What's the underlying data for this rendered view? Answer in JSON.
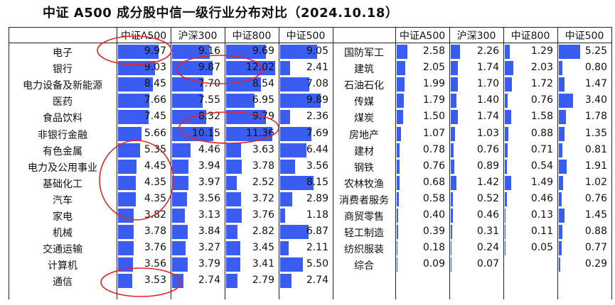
{
  "title": "中证 A500 成分股中信一级行业分布对比（2024.10.18）",
  "chart_data": {
    "type": "table",
    "columns": [
      "中证A500",
      "沪深300",
      "中证800",
      "中证500"
    ],
    "highlight_color": "#e0262b",
    "bar_color": "#3b5cf0",
    "left": [
      {
        "industry": "电子",
        "values": [
          "9.97",
          "9.16",
          "9.69",
          "9.05"
        ]
      },
      {
        "industry": "银行",
        "values": [
          "9.03",
          "9.87",
          "12.02",
          "2.41"
        ]
      },
      {
        "industry": "电力设备及新能源",
        "values": [
          "8.45",
          "7.70",
          "8.54",
          "7.08"
        ]
      },
      {
        "industry": "医药",
        "values": [
          "7.66",
          "7.55",
          "6.95",
          "9.89"
        ]
      },
      {
        "industry": "食品饮料",
        "values": [
          "7.45",
          "8.32",
          "9.79",
          "2.36"
        ]
      },
      {
        "industry": "非银行金融",
        "values": [
          "5.66",
          "10.15",
          "11.36",
          "7.69"
        ]
      },
      {
        "industry": "有色金属",
        "values": [
          "5.35",
          "4.46",
          "3.63",
          "6.44"
        ]
      },
      {
        "industry": "电力及公用事业",
        "values": [
          "4.45",
          "3.94",
          "3.78",
          "3.56"
        ]
      },
      {
        "industry": "基础化工",
        "values": [
          "4.35",
          "3.97",
          "2.52",
          "8.15"
        ]
      },
      {
        "industry": "汽车",
        "values": [
          "4.35",
          "3.56",
          "3.72",
          "2.89"
        ]
      },
      {
        "industry": "家电",
        "values": [
          "3.82",
          "3.13",
          "3.76",
          "1.18"
        ]
      },
      {
        "industry": "机械",
        "values": [
          "3.78",
          "3.84",
          "2.82",
          "6.87"
        ]
      },
      {
        "industry": "交通运输",
        "values": [
          "3.76",
          "3.27",
          "3.45",
          "2.11"
        ]
      },
      {
        "industry": "计算机",
        "values": [
          "3.56",
          "3.79",
          "3.41",
          "5.50"
        ]
      },
      {
        "industry": "通信",
        "values": [
          "3.53",
          "2.74",
          "2.79",
          "2.74"
        ]
      }
    ],
    "right": [
      {
        "industry": "国防军工",
        "values": [
          "2.58",
          "2.26",
          "1.29",
          "5.25"
        ]
      },
      {
        "industry": "建筑",
        "values": [
          "2.05",
          "1.74",
          "2.03",
          "0.80"
        ]
      },
      {
        "industry": "石油石化",
        "values": [
          "1.99",
          "1.70",
          "1.72",
          "1.47"
        ]
      },
      {
        "industry": "传媒",
        "values": [
          "1.79",
          "1.40",
          "0.76",
          "3.40"
        ]
      },
      {
        "industry": "煤炭",
        "values": [
          "1.50",
          "1.74",
          "1.58",
          "1.78"
        ]
      },
      {
        "industry": "房地产",
        "values": [
          "1.07",
          "1.03",
          "0.88",
          "1.35"
        ]
      },
      {
        "industry": "建材",
        "values": [
          "0.78",
          "0.76",
          "0.71",
          "0.81"
        ]
      },
      {
        "industry": "钢铁",
        "values": [
          "0.76",
          "0.89",
          "0.54",
          "1.91"
        ]
      },
      {
        "industry": "农林牧渔",
        "values": [
          "0.68",
          "1.42",
          "1.49",
          "1.02"
        ]
      },
      {
        "industry": "消费者服务",
        "values": [
          "0.58",
          "0.52",
          "0.46",
          "0.76"
        ]
      },
      {
        "industry": "商贸零售",
        "values": [
          "0.40",
          "0.46",
          "0.13",
          "1.45"
        ]
      },
      {
        "industry": "轻工制造",
        "values": [
          "0.39",
          "0.31",
          "0.11",
          "0.88"
        ]
      },
      {
        "industry": "纺织服装",
        "values": [
          "0.18",
          "0.24",
          "0.05",
          "0.77"
        ]
      },
      {
        "industry": "综合",
        "values": [
          "0.09",
          "0.07",
          "",
          "0.29"
        ]
      }
    ]
  }
}
